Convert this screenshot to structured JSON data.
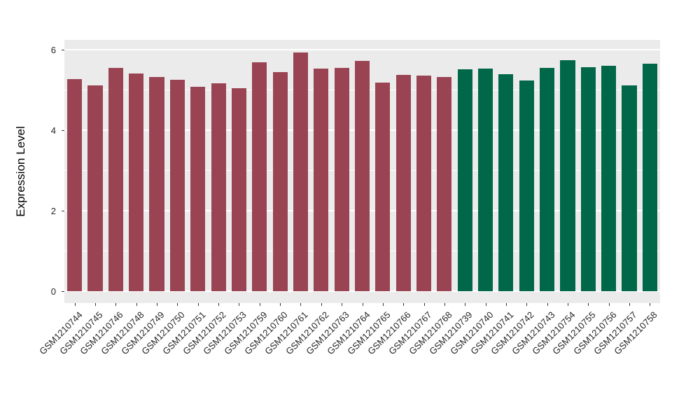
{
  "chart_data": {
    "type": "bar",
    "ylabel": "Expression Level",
    "xlabel": "",
    "categories": [
      "GSM1210744",
      "GSM1210745",
      "GSM1210746",
      "GSM1210748",
      "GSM1210749",
      "GSM1210750",
      "GSM1210751",
      "GSM1210752",
      "GSM1210753",
      "GSM1210759",
      "GSM1210760",
      "GSM1210761",
      "GSM1210762",
      "GSM1210763",
      "GSM1210764",
      "GSM1210765",
      "GSM1210766",
      "GSM1210767",
      "GSM1210768",
      "GSM1210739",
      "GSM1210740",
      "GSM1210741",
      "GSM1210742",
      "GSM1210743",
      "GSM1210754",
      "GSM1210755",
      "GSM1210756",
      "GSM1210757",
      "GSM1210758"
    ],
    "values": [
      5.28,
      5.12,
      5.56,
      5.41,
      5.32,
      5.25,
      5.08,
      5.17,
      5.05,
      5.69,
      5.45,
      5.94,
      5.54,
      5.56,
      5.72,
      5.18,
      5.38,
      5.37,
      5.32,
      5.51,
      5.53,
      5.39,
      5.24,
      5.56,
      5.74,
      5.57,
      5.61,
      5.12,
      5.66
    ],
    "bar_groups": [
      0,
      0,
      0,
      0,
      0,
      0,
      0,
      0,
      0,
      0,
      0,
      0,
      0,
      0,
      0,
      0,
      0,
      0,
      0,
      1,
      1,
      1,
      1,
      1,
      1,
      1,
      1,
      1,
      1
    ],
    "group_colors": [
      "#9A4453",
      "#006748"
    ],
    "yticks": [
      0,
      2,
      4,
      6
    ],
    "yticks_minor": [
      1,
      3,
      5
    ],
    "ylim": [
      -0.3,
      6.25
    ],
    "grid": true,
    "legend_position": "none",
    "bar_width_frac": 0.72,
    "x_label_rotation": -45,
    "panel_bg": "#EBEBEB",
    "grid_color": "#FFFFFF",
    "tick_color": "#333333"
  }
}
